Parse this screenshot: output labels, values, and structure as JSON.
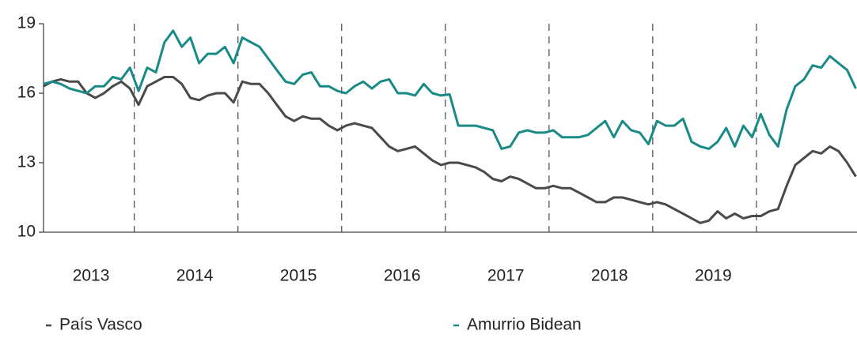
{
  "chart_data": {
    "type": "line",
    "categories": [
      null,
      null,
      null,
      null,
      null,
      "2013",
      null,
      null,
      null,
      null,
      null,
      null,
      null,
      null,
      null,
      null,
      null,
      "2014",
      null,
      null,
      null,
      null,
      null,
      null,
      null,
      null,
      null,
      null,
      null,
      "2015",
      null,
      null,
      null,
      null,
      null,
      null,
      null,
      null,
      null,
      null,
      null,
      "2016",
      null,
      null,
      null,
      null,
      null,
      null,
      null,
      null,
      null,
      null,
      null,
      "2017",
      null,
      null,
      null,
      null,
      null,
      null,
      null,
      null,
      null,
      null,
      null,
      "2018",
      null,
      null,
      null,
      null,
      null,
      null,
      null,
      null,
      null,
      null,
      null,
      "2019",
      null,
      null,
      null,
      null,
      null,
      null,
      null,
      null,
      null,
      null,
      null,
      null,
      null,
      null,
      null,
      null,
      null
    ],
    "series": [
      {
        "name": "País Vasco",
        "color": "#4a4a4a",
        "values": [
          16.3,
          16.5,
          16.6,
          16.5,
          16.5,
          16.0,
          15.8,
          16.0,
          16.3,
          16.5,
          16.2,
          15.5,
          16.3,
          16.5,
          16.7,
          16.7,
          16.4,
          15.8,
          15.7,
          15.9,
          16.0,
          16.0,
          15.6,
          16.5,
          16.4,
          16.4,
          16.0,
          15.5,
          15.0,
          14.8,
          15.0,
          14.9,
          14.9,
          14.6,
          14.4,
          14.6,
          14.7,
          14.6,
          14.5,
          14.1,
          13.7,
          13.5,
          13.6,
          13.7,
          13.4,
          13.1,
          12.9,
          13.0,
          13.0,
          12.9,
          12.8,
          12.6,
          12.3,
          12.2,
          12.4,
          12.3,
          12.1,
          11.9,
          11.9,
          12.0,
          11.9,
          11.9,
          11.7,
          11.5,
          11.3,
          11.3,
          11.5,
          11.5,
          11.4,
          11.3,
          11.2,
          11.3,
          11.2,
          11.0,
          10.8,
          10.6,
          10.4,
          10.5,
          10.9,
          10.6,
          10.8,
          10.6,
          10.7,
          10.7,
          10.9,
          11.0,
          12.0,
          12.9,
          13.2,
          13.5,
          13.4,
          13.7,
          13.5,
          13.0,
          12.4
        ]
      },
      {
        "name": "Amurrio Bidean",
        "color": "#1a8a87",
        "values": [
          16.4,
          16.5,
          16.4,
          16.2,
          16.1,
          16.0,
          16.3,
          16.3,
          16.7,
          16.6,
          17.1,
          16.1,
          17.1,
          16.9,
          18.2,
          18.7,
          18.0,
          18.4,
          17.3,
          17.7,
          17.7,
          18.0,
          17.3,
          18.4,
          18.2,
          18.0,
          17.5,
          17.0,
          16.5,
          16.4,
          16.8,
          16.9,
          16.3,
          16.3,
          16.1,
          16.0,
          16.3,
          16.5,
          16.2,
          16.5,
          16.6,
          16.0,
          16.0,
          15.9,
          16.4,
          16.0,
          15.9,
          15.95,
          14.6,
          14.6,
          14.6,
          14.5,
          14.4,
          13.6,
          13.7,
          14.3,
          14.4,
          14.3,
          14.3,
          14.4,
          14.1,
          14.1,
          14.1,
          14.2,
          14.5,
          14.8,
          14.1,
          14.8,
          14.4,
          14.3,
          13.8,
          14.8,
          14.6,
          14.6,
          14.9,
          13.9,
          13.7,
          13.6,
          13.9,
          14.5,
          13.7,
          14.6,
          14.1,
          15.1,
          14.2,
          13.7,
          15.3,
          16.3,
          16.6,
          17.2,
          17.1,
          17.6,
          17.3,
          17.0,
          16.2
        ]
      }
    ],
    "ylim": [
      10,
      19
    ],
    "yticks": [
      10,
      13,
      16,
      19
    ],
    "legend": "bottom"
  }
}
